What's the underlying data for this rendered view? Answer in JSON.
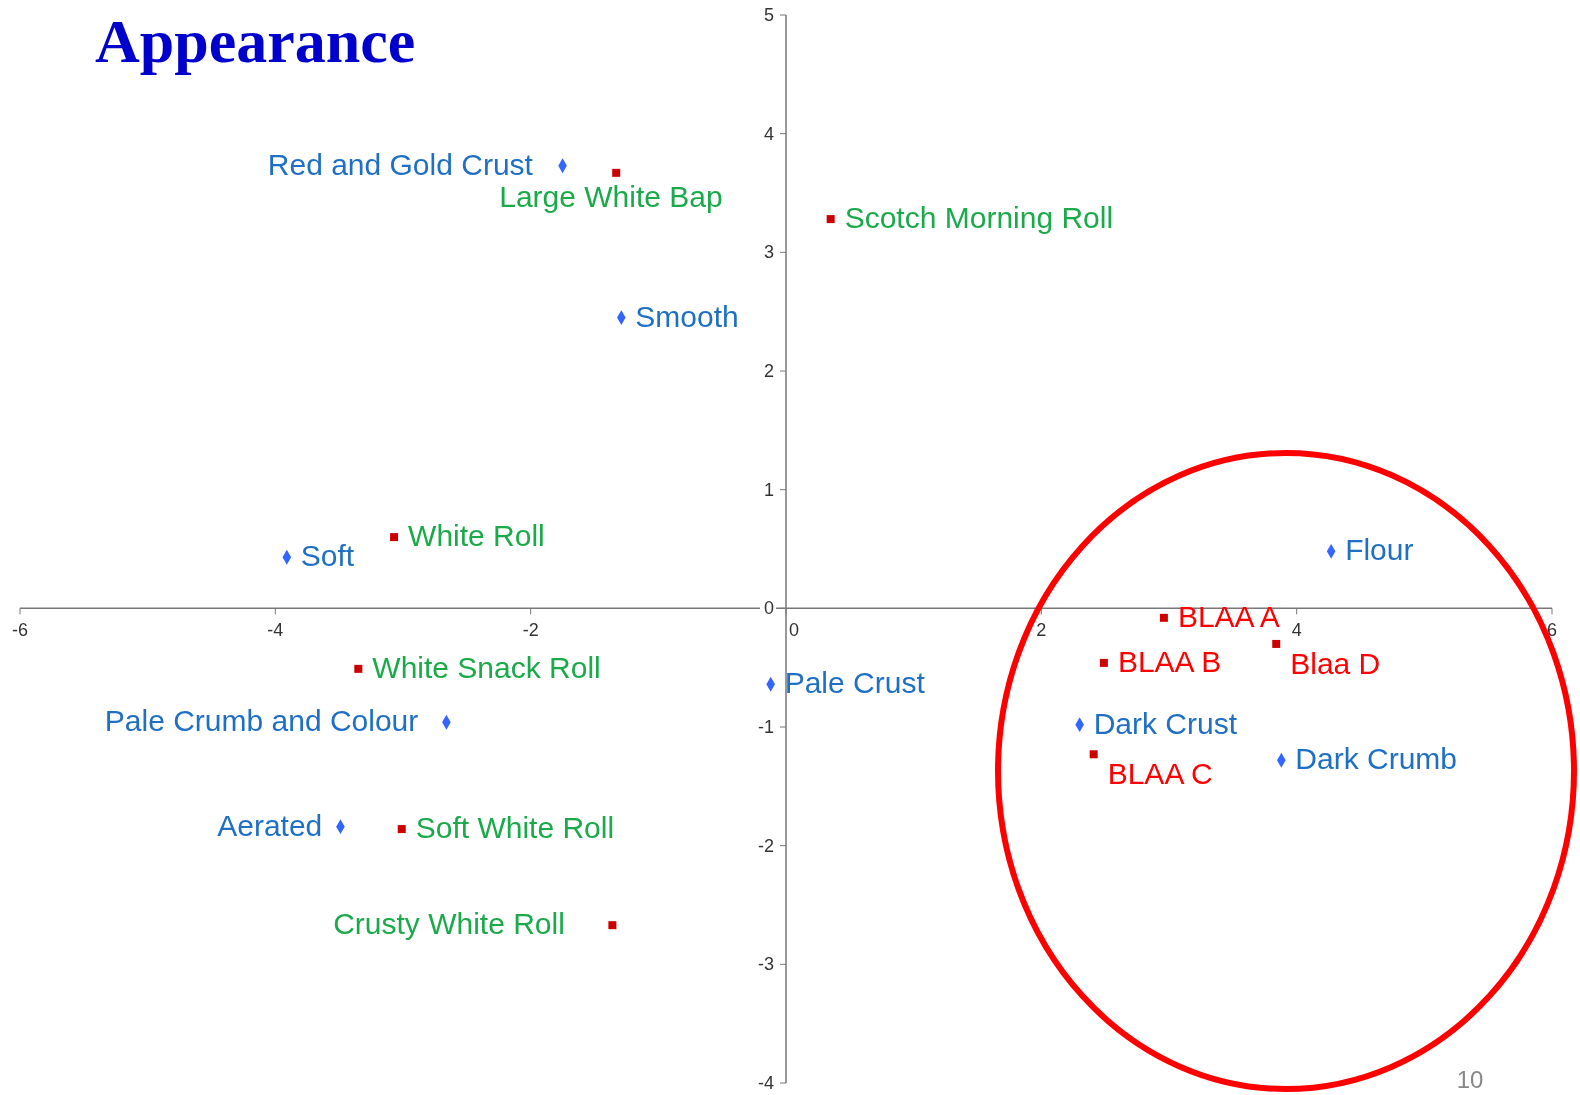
{
  "chart_data": {
    "type": "scatter",
    "title": "Appearance",
    "xlim": [
      -6,
      6
    ],
    "ylim": [
      -4,
      5
    ],
    "xticks": [
      -6,
      -4,
      -2,
      0,
      2,
      4,
      6
    ],
    "yticks": [
      -4,
      -3,
      -2,
      -1,
      0,
      1,
      2,
      3,
      4,
      5
    ],
    "series": [
      {
        "color": "#3366ff",
        "marker": "diamond",
        "x": [
          -1.75,
          -1.29,
          -3.91,
          4.27,
          -0.12,
          -2.66,
          -3.49,
          2.3,
          3.88
        ],
        "values": [
          3.73,
          2.45,
          0.43,
          0.48,
          -0.64,
          -0.96,
          -1.84,
          -0.98,
          -1.28
        ],
        "value_labels": [
          "Red and Gold Crust",
          "Smooth",
          "Soft",
          "Flour",
          "Pale Crust",
          "Pale Crumb and Colour",
          "Aerated",
          "Dark Crust",
          "Dark Crumb"
        ]
      },
      {
        "color": "#cc0000",
        "marker": "square",
        "x": [
          -1.33,
          0.35,
          -3.07,
          -3.35,
          -3.01,
          -1.36
        ],
        "values": [
          3.67,
          3.28,
          0.6,
          -0.51,
          -1.86,
          -2.67
        ],
        "value_labels": [
          "Large White Bap",
          "Scotch Morning Roll",
          "White Roll",
          "White Snack Roll",
          "Soft White Roll",
          "Crusty White Roll"
        ]
      },
      {
        "color": "#cc0000",
        "marker": "square",
        "x": [
          2.96,
          2.49,
          2.41,
          3.84
        ],
        "values": [
          -0.08,
          -0.46,
          -1.23,
          -0.3
        ],
        "value_labels": [
          "BLAA A",
          "BLAA B",
          "BLAA C",
          "Blaa D"
        ]
      }
    ],
    "annotations": [
      "10"
    ]
  }
}
